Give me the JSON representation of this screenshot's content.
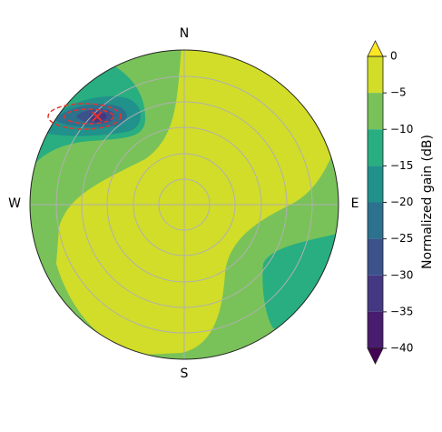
{
  "chart_data": {
    "type": "polar-contour",
    "direction_labels": {
      "north": "N",
      "south": "S",
      "east": "E",
      "west": "W"
    },
    "colorbar": {
      "label": "Normalized gain (dB)",
      "clim": [
        -40,
        0
      ],
      "ticks": [
        0,
        {
          "value": -5,
          "label": "−5"
        },
        {
          "value": -10,
          "label": "−10"
        },
        {
          "value": -15,
          "label": "−15"
        },
        {
          "value": -20,
          "label": "−20"
        },
        {
          "value": -25,
          "label": "−25"
        },
        {
          "value": -30,
          "label": "−30"
        },
        {
          "value": -35,
          "label": "−35"
        },
        {
          "value": -40,
          "label": "−40"
        }
      ],
      "colors": [
        "#d1dd29",
        "#79c259",
        "#28ae80",
        "#21918c",
        "#2c728e",
        "#3b528b",
        "#453882",
        "#481c6e"
      ],
      "extend_colors": {
        "max": "#fde725",
        "min": "#440154"
      }
    },
    "grid": true
  }
}
